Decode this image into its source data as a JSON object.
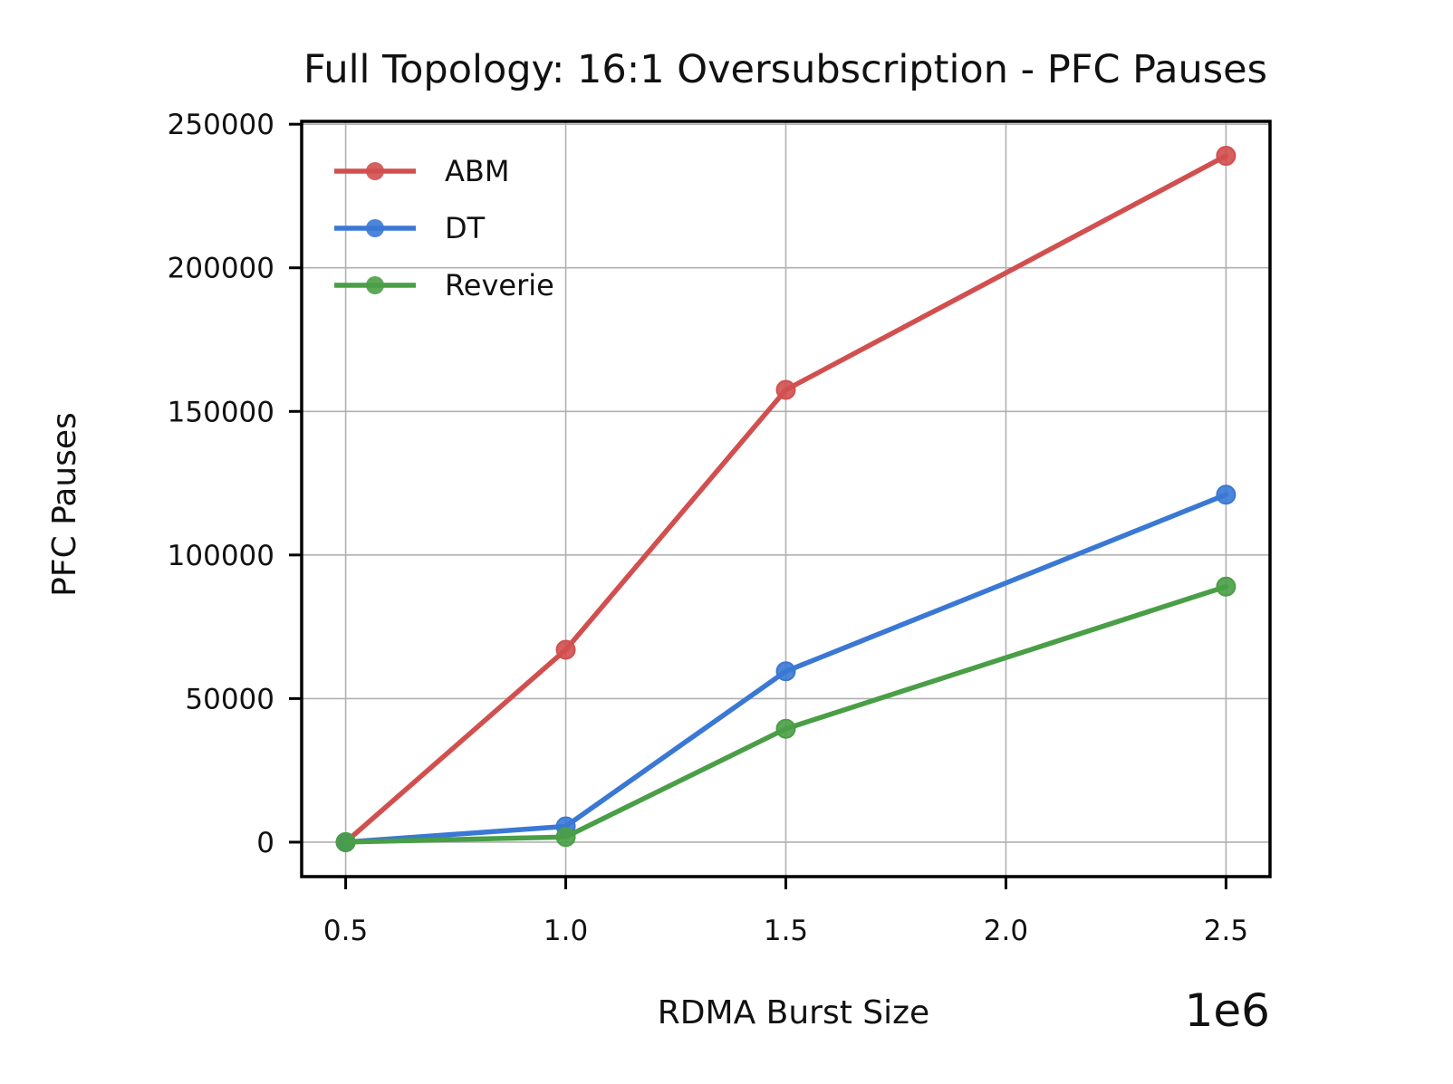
{
  "chart_data": {
    "type": "line",
    "title": "Full Topology: 16:1 Oversubscription - PFC Pauses",
    "xlabel": "RDMA Burst Size",
    "ylabel": "PFC Pauses",
    "x_offset_label": "1e6",
    "x": [
      500000,
      1000000,
      1500000,
      2500000
    ],
    "xlim": [
      400000,
      2600000
    ],
    "ylim": [
      -12000,
      251000
    ],
    "x_ticks": [
      500000,
      1000000,
      1500000,
      2000000,
      2500000
    ],
    "x_tick_labels": [
      "0.5",
      "1.0",
      "1.5",
      "2.0",
      "2.5"
    ],
    "y_ticks": [
      0,
      50000,
      100000,
      150000,
      200000,
      250000
    ],
    "y_tick_labels": [
      "0",
      "50000",
      "100000",
      "150000",
      "200000",
      "250000"
    ],
    "grid": true,
    "legend_position": "top-left",
    "series": [
      {
        "name": "ABM",
        "color": "#d24f4f",
        "values": [
          0,
          67000,
          157500,
          239000
        ]
      },
      {
        "name": "DT",
        "color": "#3a78d4",
        "values": [
          0,
          5500,
          59500,
          121000
        ]
      },
      {
        "name": "Reverie",
        "color": "#4a9e46",
        "values": [
          0,
          1800,
          39500,
          89000
        ]
      }
    ]
  }
}
